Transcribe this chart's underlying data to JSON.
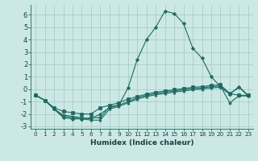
{
  "xlabel": "Humidex (Indice chaleur)",
  "background_color": "#cce8e5",
  "grid_color": "#a0c8c4",
  "line_color": "#1a6b60",
  "xlim": [
    -0.5,
    23.5
  ],
  "ylim": [
    -3.2,
    6.8
  ],
  "yticks": [
    -3,
    -2,
    -1,
    0,
    1,
    2,
    3,
    4,
    5,
    6
  ],
  "xticks": [
    0,
    1,
    2,
    3,
    4,
    5,
    6,
    7,
    8,
    9,
    10,
    11,
    12,
    13,
    14,
    15,
    16,
    17,
    18,
    19,
    20,
    21,
    22,
    23
  ],
  "series": [
    {
      "x": [
        0,
        1,
        2,
        3,
        4,
        5,
        6,
        7,
        8,
        9,
        10,
        11,
        12,
        13,
        14,
        15,
        16,
        17,
        18,
        19,
        20,
        21,
        22,
        23
      ],
      "y": [
        -0.5,
        -0.9,
        -1.6,
        -2.3,
        -2.4,
        -2.4,
        -2.3,
        -2.3,
        -1.4,
        -1.3,
        0.1,
        2.4,
        4.0,
        5.0,
        6.3,
        6.1,
        5.3,
        3.3,
        2.5,
        1.0,
        0.2,
        -0.4,
        0.2,
        -0.5
      ],
      "marker": "D"
    },
    {
      "x": [
        0,
        1,
        2,
        3,
        4,
        5,
        6,
        7,
        8,
        9,
        10,
        11,
        12,
        13,
        14,
        15,
        16,
        17,
        18,
        19,
        20,
        21,
        22,
        23
      ],
      "y": [
        -0.5,
        -0.9,
        -1.5,
        -1.8,
        -1.9,
        -2.0,
        -2.0,
        -1.5,
        -1.3,
        -1.1,
        -0.8,
        -0.6,
        -0.4,
        -0.25,
        -0.15,
        -0.05,
        0.05,
        0.15,
        0.2,
        0.3,
        0.35,
        -0.35,
        -0.5,
        -0.5
      ],
      "marker": "s"
    },
    {
      "x": [
        0,
        1,
        2,
        3,
        4,
        5,
        6,
        7,
        8,
        9,
        10,
        11,
        12,
        13,
        14,
        15,
        16,
        17,
        18,
        19,
        20,
        21,
        22,
        23
      ],
      "y": [
        -0.5,
        -0.9,
        -1.6,
        -2.1,
        -2.2,
        -2.3,
        -2.4,
        -2.0,
        -1.5,
        -1.3,
        -1.0,
        -0.7,
        -0.5,
        -0.35,
        -0.25,
        -0.15,
        -0.05,
        0.05,
        0.1,
        0.2,
        0.25,
        -1.1,
        -0.55,
        -0.55
      ],
      "marker": "o"
    },
    {
      "x": [
        0,
        1,
        2,
        3,
        4,
        5,
        6,
        7,
        8,
        9,
        10,
        11,
        12,
        13,
        14,
        15,
        16,
        17,
        18,
        19,
        20,
        21,
        22,
        23
      ],
      "y": [
        -0.5,
        -0.9,
        -1.6,
        -2.2,
        -2.3,
        -2.4,
        -2.5,
        -2.5,
        -1.6,
        -1.4,
        -1.1,
        -0.8,
        -0.6,
        -0.45,
        -0.35,
        -0.25,
        -0.15,
        -0.05,
        0.0,
        0.1,
        0.15,
        -0.4,
        0.15,
        -0.55
      ],
      "marker": "^"
    }
  ]
}
